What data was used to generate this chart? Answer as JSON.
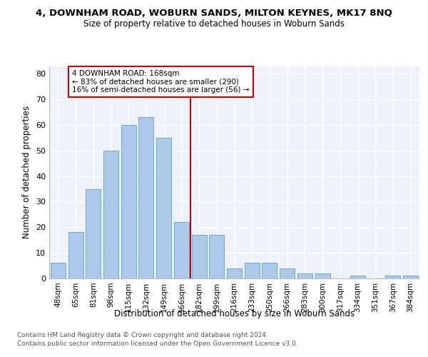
{
  "title1": "4, DOWNHAM ROAD, WOBURN SANDS, MILTON KEYNES, MK17 8NQ",
  "title2": "Size of property relative to detached houses in Woburn Sands",
  "xlabel": "Distribution of detached houses by size in Woburn Sands",
  "ylabel": "Number of detached properties",
  "categories": [
    "48sqm",
    "65sqm",
    "81sqm",
    "98sqm",
    "115sqm",
    "132sqm",
    "149sqm",
    "166sqm",
    "182sqm",
    "199sqm",
    "216sqm",
    "233sqm",
    "250sqm",
    "266sqm",
    "283sqm",
    "300sqm",
    "317sqm",
    "334sqm",
    "351sqm",
    "367sqm",
    "384sqm"
  ],
  "values": [
    6,
    18,
    35,
    50,
    60,
    63,
    55,
    22,
    17,
    17,
    4,
    6,
    6,
    4,
    2,
    2,
    0,
    1,
    0,
    1,
    1
  ],
  "bar_color": "#adc9ea",
  "bar_edge_color": "#6aaad4",
  "vline_color": "#cc0000",
  "vline_index": 7.5,
  "annotation_line1": "4 DOWNHAM ROAD: 168sqm",
  "annotation_line2": "← 83% of detached houses are smaller (290)",
  "annotation_line3": "16% of semi-detached houses are larger (56) →",
  "annotation_box_edge": "#cc0000",
  "ylim": [
    0,
    83
  ],
  "yticks": [
    0,
    10,
    20,
    30,
    40,
    50,
    60,
    70,
    80
  ],
  "background_color": "#edf1f9",
  "grid_color": "white",
  "footer1": "Contains HM Land Registry data © Crown copyright and database right 2024.",
  "footer2": "Contains public sector information licensed under the Open Government Licence v3.0."
}
